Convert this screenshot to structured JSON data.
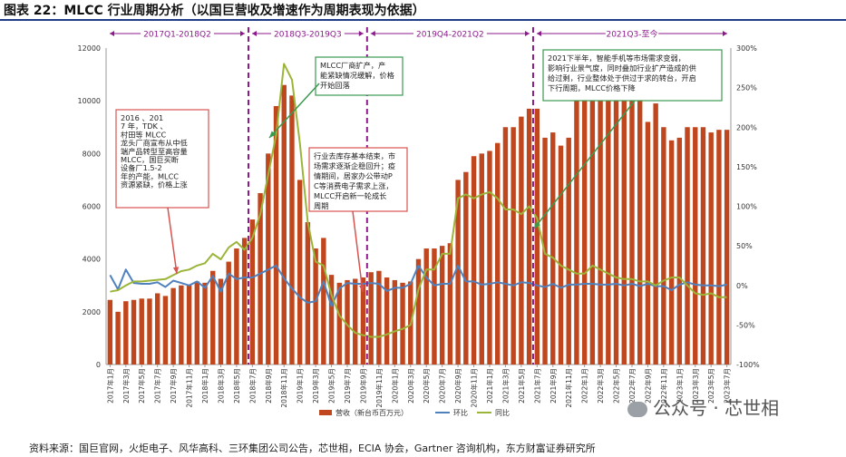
{
  "title": "图表 22：MLCC 行业周期分析（以国巨营收及增速作为周期表现为依据）",
  "source": "资料来源：国巨官网，火炬电子、风华高科、三环集团公司公告，芯世相，ECIA 协会，Gartner 咨询机构，东方财富证券研究所",
  "watermark": "公众号 · 芯世相",
  "colors": {
    "bar": "#c0461d",
    "yoy": "#9bb53a",
    "mom": "#4f81bd",
    "box_red": "#d9534f",
    "box_green": "#3a9a4f",
    "divider": "#8b1a8b",
    "title_rule": "#1f3c88"
  },
  "chart_data": {
    "type": "bar",
    "x": [
      "2017年1月",
      "2017年2月",
      "2017年3月",
      "2017年4月",
      "2017年5月",
      "2017年6月",
      "2017年7月",
      "2017年8月",
      "2017年9月",
      "2017年10月",
      "2017年11月",
      "2017年12月",
      "2018年1月",
      "2018年2月",
      "2018年3月",
      "2018年4月",
      "2018年5月",
      "2018年6月",
      "2018年7月",
      "2018年8月",
      "2018年9月",
      "2018年10月",
      "2018年11月",
      "2018年12月",
      "2019年1月",
      "2019年2月",
      "2019年3月",
      "2019年4月",
      "2019年5月",
      "2019年6月",
      "2019年7月",
      "2019年8月",
      "2019年9月",
      "2019年10月",
      "2019年11月",
      "2019年12月",
      "2020年1月",
      "2020年2月",
      "2020年3月",
      "2020年4月",
      "2020年5月",
      "2020年6月",
      "2020年7月",
      "2020年8月",
      "2020年9月",
      "2020年10月",
      "2020年11月",
      "2020年12月",
      "2021年1月",
      "2021年2月",
      "2021年3月",
      "2021年4月",
      "2021年5月",
      "2021年6月",
      "2021年7月",
      "2021年8月",
      "2021年9月",
      "2021年10月",
      "2021年11月",
      "2021年12月",
      "2022年1月",
      "2022年2月",
      "2022年3月",
      "2022年4月",
      "2022年5月",
      "2022年6月",
      "2022年7月",
      "2022年8月",
      "2022年9月",
      "2022年10月",
      "2022年11月",
      "2022年12月",
      "2023年1月",
      "2023年2月",
      "2023年3月",
      "2023年4月",
      "2023年5月",
      "2023年6月",
      "2023年7月"
    ],
    "x_tick_labels": [
      "2017年1月",
      "2017年3月",
      "2017年5月",
      "2017年7月",
      "2017年9月",
      "2017年11月",
      "2018年1月",
      "2018年3月",
      "2018年5月",
      "2018年7月",
      "2018年9月",
      "2018年11月",
      "2019年1月",
      "2019年3月",
      "2019年5月",
      "2019年7月",
      "2019年9月",
      "2019年11月",
      "2020年1月",
      "2020年3月",
      "2020年5月",
      "2020年7月",
      "2020年9月",
      "2020年11月",
      "2021年1月",
      "2021年3月",
      "2021年5月",
      "2021年7月",
      "2021年9月",
      "2021年11月",
      "2022年1月",
      "2022年3月",
      "2022年5月",
      "2022年7月",
      "2022年9月",
      "2022年11月",
      "2023年1月",
      "2023年3月",
      "2023年5月",
      "2023年7月"
    ],
    "series": [
      {
        "name": "营收（新台币百万元）",
        "axis": "left",
        "type": "bar",
        "values": [
          2450,
          2000,
          2400,
          2450,
          2500,
          2500,
          2700,
          2600,
          2900,
          3000,
          3000,
          3150,
          3100,
          3550,
          3250,
          3900,
          4400,
          4800,
          5500,
          6500,
          8000,
          9800,
          10600,
          10200,
          7000,
          5400,
          4400,
          4800,
          3400,
          3100,
          3200,
          3250,
          3300,
          3500,
          3550,
          3300,
          3200,
          3100,
          3150,
          4000,
          4400,
          4400,
          4500,
          4600,
          7000,
          7300,
          7900,
          8000,
          8100,
          8400,
          9000,
          9000,
          9400,
          9700,
          9700,
          8600,
          8800,
          8300,
          8600,
          10200,
          10200,
          10400,
          10500,
          10600,
          10400,
          10200,
          10200,
          10000,
          9200,
          9900,
          9000,
          8500,
          8600,
          9000,
          9000,
          9000,
          8800,
          8900,
          8900
        ]
      },
      {
        "name": "环比",
        "axis": "right",
        "type": "line",
        "values": [
          13,
          -5,
          20,
          3,
          2,
          2,
          4,
          -2,
          6,
          3,
          0,
          5,
          -3,
          12,
          -8,
          15,
          8,
          10,
          10,
          15,
          20,
          25,
          9,
          -4,
          -15,
          -22,
          -20,
          5,
          -26,
          -4,
          3,
          2,
          2,
          3,
          2,
          -7,
          -3,
          -3,
          2,
          25,
          10,
          0,
          2,
          2,
          25,
          5,
          5,
          1,
          2,
          4,
          2,
          0,
          4,
          3,
          0,
          -2,
          2,
          -3,
          1,
          1,
          2,
          2,
          1,
          1,
          2,
          0,
          2,
          -1,
          2,
          -1,
          -1,
          -6,
          1,
          4,
          1,
          0,
          0,
          -1,
          1
        ]
      },
      {
        "name": "同比",
        "axis": "right",
        "type": "line",
        "values": [
          -8,
          -6,
          0,
          5,
          5,
          6,
          7,
          8,
          13,
          18,
          20,
          25,
          28,
          40,
          33,
          48,
          55,
          45,
          60,
          90,
          140,
          190,
          280,
          260,
          180,
          80,
          30,
          25,
          -12,
          -38,
          -50,
          -60,
          -63,
          -65,
          -65,
          -62,
          -58,
          -55,
          -50,
          -5,
          20,
          20,
          40,
          40,
          110,
          115,
          110,
          115,
          118,
          110,
          96,
          96,
          90,
          100,
          85,
          40,
          35,
          25,
          20,
          15,
          15,
          25,
          20,
          15,
          10,
          8,
          8,
          5,
          5,
          0,
          6,
          10,
          10,
          0,
          -10,
          -12,
          -10,
          -15,
          -15
        ]
      }
    ],
    "ylim": [
      0,
      12000
    ],
    "yticks": [
      0,
      2000,
      4000,
      6000,
      8000,
      10000,
      12000
    ],
    "y2lim": [
      -100,
      300
    ],
    "y2ticks": [
      "-100%",
      "-50%",
      "0%",
      "50%",
      "100%",
      "150%",
      "200%",
      "250%",
      "300%"
    ],
    "grid": false,
    "legend_placement": "bottom",
    "periods": [
      {
        "label": "2017Q1-2018Q2",
        "start": "2017年1月",
        "end": "2018年6月"
      },
      {
        "label": "2018Q3-2019Q3",
        "start": "2018年7月",
        "end": "2019年9月"
      },
      {
        "label": "2019Q4-2021Q2",
        "start": "2019年10月",
        "end": "2021年6月"
      },
      {
        "label": "2021Q3-至今",
        "start": "2021年7月",
        "end": "2023年7月"
      }
    ],
    "annotations": [
      {
        "style": "red",
        "text": "2016 、2017 年，TDK 、村田等 MLCC 龙头厂商宣布从中低端产品转型至高容量MLCC，国巨买断设备厂1.5-2 年的产能，MLCC资源紧缺，价格上涨"
      },
      {
        "style": "green",
        "text": "MLCC厂商扩产，产能紧缺情况缓解，价格开始回落"
      },
      {
        "style": "red",
        "text": "行业去库存基本结束，市场需求逐渐企稳回升；疫情期间，居家办公带动PC等消费电子需求上涨，MLCC开启新一轮成长周期"
      },
      {
        "style": "green",
        "text": "2021下半年，智能手机等市场需求变弱，影响行业景气度，同时叠加行业扩产造成的供给过剩，行业整体处于供过于求的转台，开启下行周期，MLCC价格下降"
      }
    ]
  }
}
